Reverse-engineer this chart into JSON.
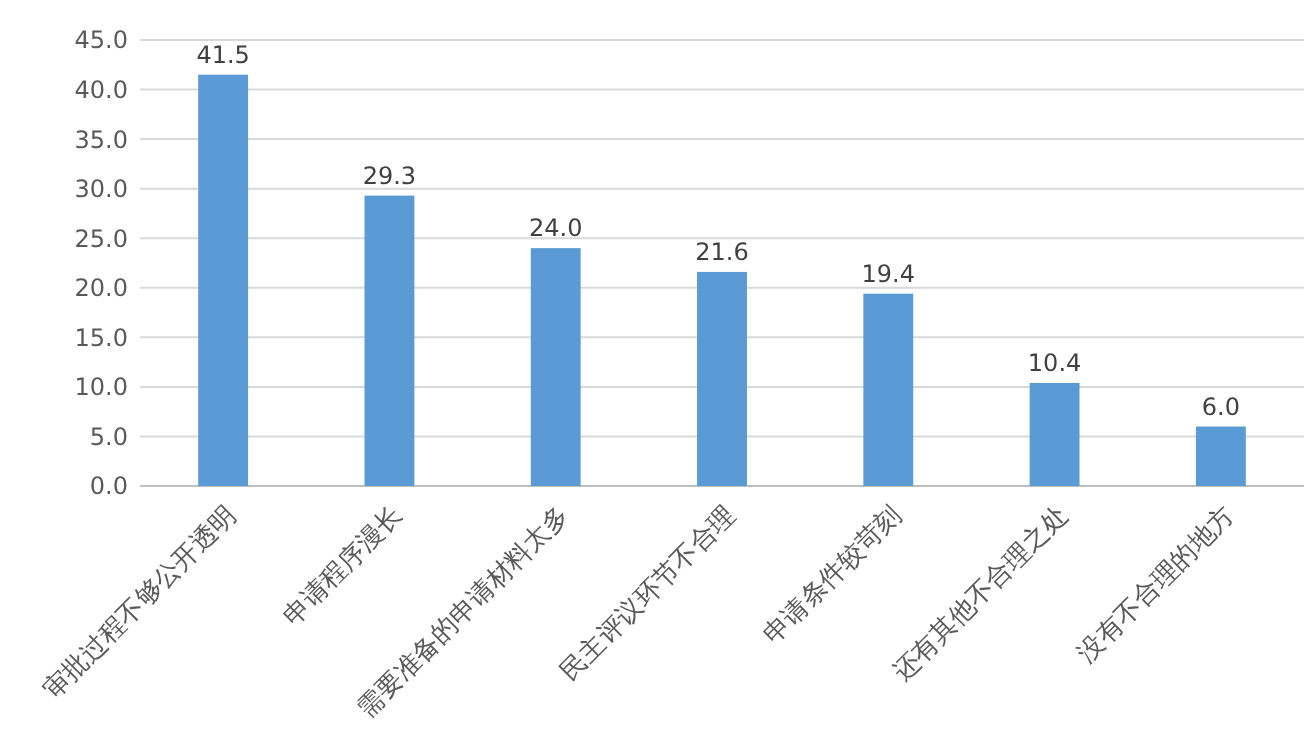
{
  "chart_data": {
    "type": "bar",
    "categories": [
      "审批过程不够公开透明",
      "申请程序漫长",
      "需要准备的申请材料太多",
      "民主评议环节不合理",
      "申请条件较苛刻",
      "还有其他不合理之处",
      "没有不合理的地方"
    ],
    "values": [
      41.5,
      29.3,
      24.0,
      21.6,
      19.4,
      10.4,
      6.0
    ],
    "value_labels": [
      "41.5",
      "29.3",
      "24.0",
      "21.6",
      "19.4",
      "10.4",
      "6.0"
    ],
    "color": "#5b9bd5",
    "ylim": [
      0,
      45
    ],
    "yticks": [
      {
        "value": 0,
        "label": "0.0"
      },
      {
        "value": 5,
        "label": "5.0"
      },
      {
        "value": 10,
        "label": "10.0"
      },
      {
        "value": 15,
        "label": "15.0"
      },
      {
        "value": 20,
        "label": "20.0"
      },
      {
        "value": 25,
        "label": "25.0"
      },
      {
        "value": 30,
        "label": "30.0"
      },
      {
        "value": 35,
        "label": "35.0"
      },
      {
        "value": 40,
        "label": "40.0"
      },
      {
        "value": 45,
        "label": "45.0"
      }
    ],
    "grid": true
  }
}
